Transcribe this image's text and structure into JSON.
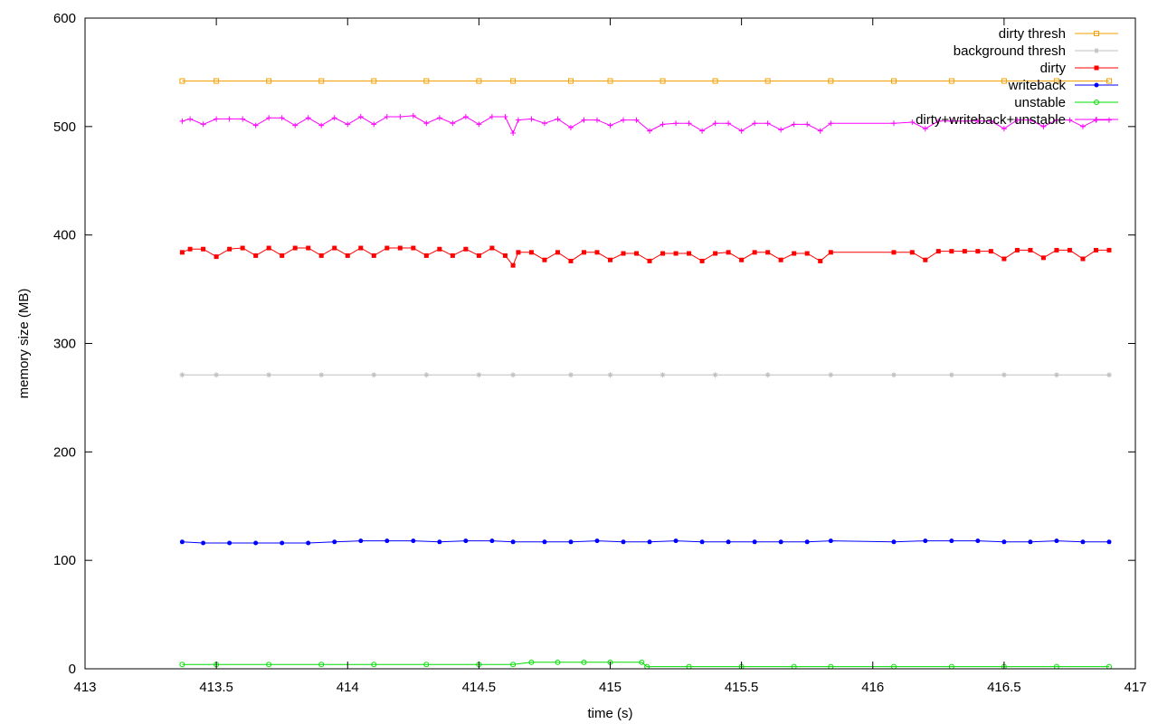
{
  "chart_data": {
    "type": "line",
    "title": "",
    "xlabel": "time (s)",
    "ylabel": "memory size (MB)",
    "xlim": [
      413,
      417
    ],
    "ylim": [
      0,
      600
    ],
    "x_ticks": [
      413,
      413.5,
      414,
      414.5,
      415,
      415.5,
      416,
      416.5,
      417
    ],
    "x_tick_labels": [
      "413",
      "413.5",
      "414",
      "414.5",
      "415",
      "415.5",
      "416",
      "416.5",
      "417"
    ],
    "y_ticks": [
      0,
      100,
      200,
      300,
      400,
      500,
      600
    ],
    "y_tick_labels": [
      "0",
      "100",
      "200",
      "300",
      "400",
      "500",
      "600"
    ],
    "grid": false,
    "legend_position": "top-right",
    "series": [
      {
        "name": "dirty thresh",
        "color": "#f0a000",
        "marker": "square-open",
        "points": [
          [
            413.37,
            542
          ],
          [
            413.5,
            542
          ],
          [
            413.7,
            542
          ],
          [
            413.9,
            542
          ],
          [
            414.1,
            542
          ],
          [
            414.3,
            542
          ],
          [
            414.5,
            542
          ],
          [
            414.63,
            542
          ],
          [
            414.85,
            542
          ],
          [
            415.0,
            542
          ],
          [
            415.2,
            542
          ],
          [
            415.4,
            542
          ],
          [
            415.6,
            542
          ],
          [
            415.84,
            542
          ],
          [
            416.08,
            542
          ],
          [
            416.3,
            542
          ],
          [
            416.5,
            542
          ],
          [
            416.7,
            542
          ],
          [
            416.9,
            542
          ]
        ]
      },
      {
        "name": "background thresh",
        "color": "#c0c0c0",
        "marker": "star",
        "points": [
          [
            413.37,
            271
          ],
          [
            413.5,
            271
          ],
          [
            413.7,
            271
          ],
          [
            413.9,
            271
          ],
          [
            414.1,
            271
          ],
          [
            414.3,
            271
          ],
          [
            414.5,
            271
          ],
          [
            414.63,
            271
          ],
          [
            414.85,
            271
          ],
          [
            415.0,
            271
          ],
          [
            415.2,
            271
          ],
          [
            415.4,
            271
          ],
          [
            415.6,
            271
          ],
          [
            415.84,
            271
          ],
          [
            416.08,
            271
          ],
          [
            416.3,
            271
          ],
          [
            416.5,
            271
          ],
          [
            416.7,
            271
          ],
          [
            416.9,
            271
          ]
        ]
      },
      {
        "name": "dirty",
        "color": "#ff0000",
        "marker": "square-filled",
        "points": [
          [
            413.37,
            384
          ],
          [
            413.4,
            387
          ],
          [
            413.45,
            387
          ],
          [
            413.5,
            380
          ],
          [
            413.55,
            387
          ],
          [
            413.6,
            388
          ],
          [
            413.65,
            381
          ],
          [
            413.7,
            388
          ],
          [
            413.75,
            381
          ],
          [
            413.8,
            388
          ],
          [
            413.85,
            388
          ],
          [
            413.9,
            381
          ],
          [
            413.95,
            388
          ],
          [
            414.0,
            381
          ],
          [
            414.05,
            388
          ],
          [
            414.1,
            381
          ],
          [
            414.15,
            388
          ],
          [
            414.2,
            388
          ],
          [
            414.25,
            388
          ],
          [
            414.3,
            381
          ],
          [
            414.35,
            387
          ],
          [
            414.4,
            381
          ],
          [
            414.45,
            387
          ],
          [
            414.5,
            381
          ],
          [
            414.55,
            388
          ],
          [
            414.6,
            381
          ],
          [
            414.63,
            372
          ],
          [
            414.65,
            384
          ],
          [
            414.7,
            384
          ],
          [
            414.75,
            377
          ],
          [
            414.8,
            384
          ],
          [
            414.85,
            376
          ],
          [
            414.9,
            384
          ],
          [
            414.95,
            384
          ],
          [
            415.0,
            377
          ],
          [
            415.05,
            383
          ],
          [
            415.1,
            383
          ],
          [
            415.15,
            376
          ],
          [
            415.2,
            383
          ],
          [
            415.25,
            383
          ],
          [
            415.3,
            383
          ],
          [
            415.35,
            376
          ],
          [
            415.4,
            383
          ],
          [
            415.45,
            384
          ],
          [
            415.5,
            377
          ],
          [
            415.55,
            384
          ],
          [
            415.6,
            384
          ],
          [
            415.65,
            377
          ],
          [
            415.7,
            383
          ],
          [
            415.75,
            383
          ],
          [
            415.8,
            376
          ],
          [
            415.84,
            384
          ],
          [
            416.08,
            384
          ],
          [
            416.15,
            384
          ],
          [
            416.2,
            377
          ],
          [
            416.25,
            385
          ],
          [
            416.3,
            385
          ],
          [
            416.35,
            385
          ],
          [
            416.4,
            385
          ],
          [
            416.45,
            385
          ],
          [
            416.5,
            378
          ],
          [
            416.55,
            386
          ],
          [
            416.6,
            386
          ],
          [
            416.65,
            379
          ],
          [
            416.7,
            386
          ],
          [
            416.75,
            386
          ],
          [
            416.8,
            378
          ],
          [
            416.85,
            386
          ],
          [
            416.9,
            386
          ]
        ]
      },
      {
        "name": "writeback",
        "color": "#0000ff",
        "marker": "circle-filled",
        "points": [
          [
            413.37,
            117
          ],
          [
            413.45,
            116
          ],
          [
            413.55,
            116
          ],
          [
            413.65,
            116
          ],
          [
            413.75,
            116
          ],
          [
            413.85,
            116
          ],
          [
            413.95,
            117
          ],
          [
            414.05,
            118
          ],
          [
            414.15,
            118
          ],
          [
            414.25,
            118
          ],
          [
            414.35,
            117
          ],
          [
            414.45,
            118
          ],
          [
            414.55,
            118
          ],
          [
            414.63,
            117
          ],
          [
            414.75,
            117
          ],
          [
            414.85,
            117
          ],
          [
            414.95,
            118
          ],
          [
            415.05,
            117
          ],
          [
            415.15,
            117
          ],
          [
            415.25,
            118
          ],
          [
            415.35,
            117
          ],
          [
            415.45,
            117
          ],
          [
            415.55,
            117
          ],
          [
            415.65,
            117
          ],
          [
            415.75,
            117
          ],
          [
            415.84,
            118
          ],
          [
            416.08,
            117
          ],
          [
            416.2,
            118
          ],
          [
            416.3,
            118
          ],
          [
            416.4,
            118
          ],
          [
            416.5,
            117
          ],
          [
            416.6,
            117
          ],
          [
            416.7,
            118
          ],
          [
            416.8,
            117
          ],
          [
            416.9,
            117
          ]
        ]
      },
      {
        "name": "unstable",
        "color": "#00dd00",
        "marker": "circle-open",
        "points": [
          [
            413.37,
            4
          ],
          [
            413.5,
            4
          ],
          [
            413.7,
            4
          ],
          [
            413.9,
            4
          ],
          [
            414.1,
            4
          ],
          [
            414.3,
            4
          ],
          [
            414.5,
            4
          ],
          [
            414.63,
            4
          ],
          [
            414.7,
            6
          ],
          [
            414.8,
            6
          ],
          [
            414.9,
            6
          ],
          [
            415.0,
            6
          ],
          [
            415.12,
            6
          ],
          [
            415.14,
            2
          ],
          [
            415.3,
            2
          ],
          [
            415.5,
            2
          ],
          [
            415.7,
            2
          ],
          [
            415.84,
            2
          ],
          [
            416.08,
            2
          ],
          [
            416.3,
            2
          ],
          [
            416.5,
            2
          ],
          [
            416.7,
            2
          ],
          [
            416.9,
            2
          ]
        ]
      },
      {
        "name": "dirty+writeback+unstable",
        "color": "#ff00ff",
        "marker": "plus",
        "points": [
          [
            413.37,
            505
          ],
          [
            413.4,
            507
          ],
          [
            413.45,
            502
          ],
          [
            413.5,
            507
          ],
          [
            413.55,
            507
          ],
          [
            413.6,
            507
          ],
          [
            413.65,
            501
          ],
          [
            413.7,
            508
          ],
          [
            413.75,
            508
          ],
          [
            413.8,
            501
          ],
          [
            413.85,
            508
          ],
          [
            413.9,
            501
          ],
          [
            413.95,
            508
          ],
          [
            414.0,
            502
          ],
          [
            414.05,
            509
          ],
          [
            414.1,
            502
          ],
          [
            414.15,
            509
          ],
          [
            414.2,
            509
          ],
          [
            414.25,
            510
          ],
          [
            414.3,
            503
          ],
          [
            414.35,
            508
          ],
          [
            414.4,
            503
          ],
          [
            414.45,
            509
          ],
          [
            414.5,
            502
          ],
          [
            414.55,
            509
          ],
          [
            414.6,
            509
          ],
          [
            414.63,
            494
          ],
          [
            414.65,
            506
          ],
          [
            414.7,
            507
          ],
          [
            414.75,
            503
          ],
          [
            414.8,
            507
          ],
          [
            414.85,
            499
          ],
          [
            414.9,
            506
          ],
          [
            414.95,
            506
          ],
          [
            415.0,
            501
          ],
          [
            415.05,
            506
          ],
          [
            415.1,
            506
          ],
          [
            415.15,
            496
          ],
          [
            415.2,
            502
          ],
          [
            415.25,
            503
          ],
          [
            415.3,
            503
          ],
          [
            415.35,
            496
          ],
          [
            415.4,
            503
          ],
          [
            415.45,
            503
          ],
          [
            415.5,
            496
          ],
          [
            415.55,
            503
          ],
          [
            415.6,
            503
          ],
          [
            415.65,
            497
          ],
          [
            415.7,
            502
          ],
          [
            415.75,
            502
          ],
          [
            415.8,
            496
          ],
          [
            415.84,
            503
          ],
          [
            416.08,
            503
          ],
          [
            416.15,
            504
          ],
          [
            416.2,
            498
          ],
          [
            416.25,
            505
          ],
          [
            416.3,
            505
          ],
          [
            416.35,
            505
          ],
          [
            416.4,
            505
          ],
          [
            416.45,
            505
          ],
          [
            416.5,
            498
          ],
          [
            416.55,
            506
          ],
          [
            416.6,
            506
          ],
          [
            416.65,
            500
          ],
          [
            416.7,
            506
          ],
          [
            416.75,
            506
          ],
          [
            416.8,
            500
          ],
          [
            416.85,
            506
          ],
          [
            416.9,
            506
          ]
        ]
      }
    ]
  }
}
